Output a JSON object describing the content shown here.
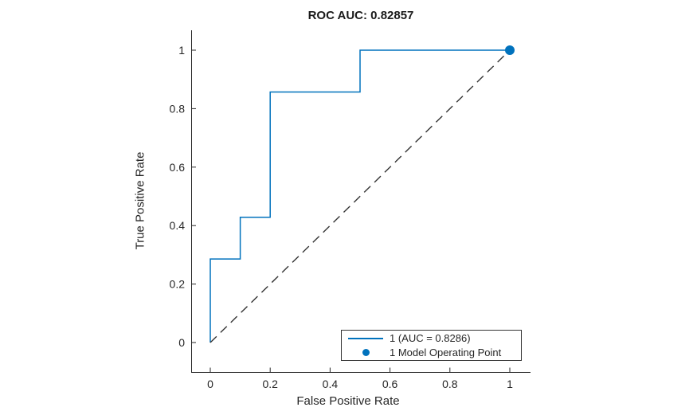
{
  "colors": {
    "curve": "#0072BD",
    "marker": "#0072BD",
    "chance_line": "#333333",
    "axis": "#262626",
    "text": "#262626",
    "background": "#ffffff",
    "legend_border": "#333333"
  },
  "chart_data": {
    "type": "line",
    "subtype": "roc-curve",
    "title": "ROC AUC: 0.82857",
    "xlabel": "False Positive Rate",
    "ylabel": "True Positive Rate",
    "auc_title_value": 0.82857,
    "grid": false,
    "xlim": [
      -0.064,
      1.069
    ],
    "ylim": [
      -0.101,
      1.071
    ],
    "x_ticks": [
      0,
      0.2,
      0.4,
      0.6,
      0.8,
      1
    ],
    "x_tick_labels": [
      "0",
      "0.2",
      "0.4",
      "0.6",
      "0.8",
      "1"
    ],
    "y_ticks": [
      0,
      0.2,
      0.4,
      0.6,
      0.8,
      1
    ],
    "y_tick_labels": [
      "0",
      "0.2",
      "0.4",
      "0.6",
      "0.8",
      "1"
    ],
    "series": [
      {
        "name": "1 (AUC = 0.8286)",
        "type": "step-line",
        "x": [
          0,
          0,
          0.1,
          0.1,
          0.2,
          0.2,
          0.5,
          0.5,
          1
        ],
        "y": [
          0,
          0.2857,
          0.2857,
          0.4286,
          0.4286,
          0.8571,
          0.8571,
          1,
          1
        ]
      },
      {
        "name": "chance-diagonal",
        "type": "dashed-line",
        "x": [
          0,
          1
        ],
        "y": [
          0,
          1
        ]
      },
      {
        "name": "1 Model Operating Point",
        "type": "scatter",
        "x": [
          1
        ],
        "y": [
          1
        ]
      }
    ],
    "legend": {
      "position": "lower right",
      "entries": [
        {
          "swatch": "line",
          "label": "1 (AUC = 0.8286)"
        },
        {
          "swatch": "dot",
          "label": "1 Model Operating Point"
        }
      ]
    }
  }
}
